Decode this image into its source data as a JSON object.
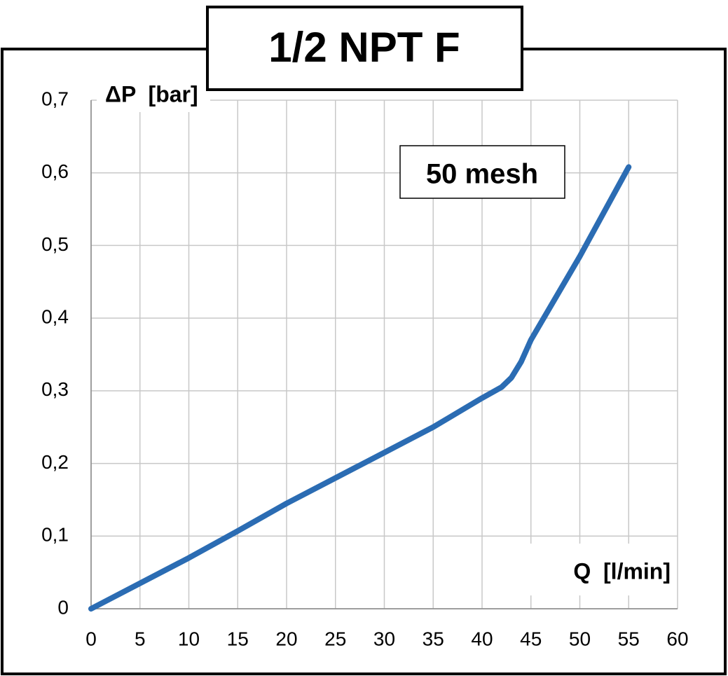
{
  "chart_data": {
    "type": "line",
    "title": "1/2 NPT F",
    "annotation": "50 mesh",
    "x_label": "Q  [l/min]",
    "y_label": "ΔP  [bar]",
    "x": [
      0,
      5,
      10,
      15,
      20,
      25,
      30,
      35,
      40,
      42,
      43,
      44,
      45,
      50,
      55
    ],
    "series": [
      {
        "name": "50 mesh",
        "color": "#2b6cb3",
        "values": [
          0,
          0.035,
          0.07,
          0.107,
          0.145,
          0.18,
          0.215,
          0.25,
          0.29,
          0.305,
          0.318,
          0.34,
          0.37,
          0.485,
          0.608
        ]
      }
    ],
    "xlim": [
      0,
      60
    ],
    "xticks": [
      0,
      5,
      10,
      15,
      20,
      25,
      30,
      35,
      40,
      45,
      50,
      55,
      60
    ],
    "ylim": [
      0,
      0.7
    ],
    "yticks": [
      0,
      {
        "value": 0.1,
        "label": "0,1"
      },
      {
        "value": 0.2,
        "label": "0,2"
      },
      {
        "value": 0.3,
        "label": "0,3"
      },
      {
        "value": 0.4,
        "label": "0,4"
      },
      {
        "value": 0.5,
        "label": "0,5"
      },
      {
        "value": 0.6,
        "label": "0,6"
      },
      {
        "value": 0.7,
        "label": "0,7"
      }
    ],
    "grid": true
  }
}
